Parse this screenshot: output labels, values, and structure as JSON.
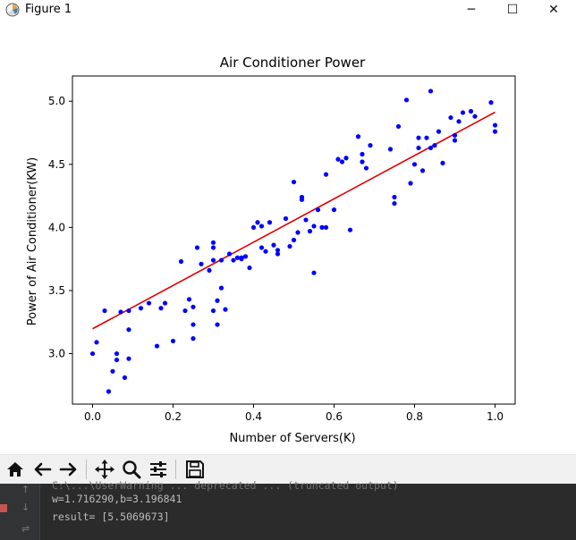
{
  "window": {
    "title": "Figure 1",
    "minimize_glyph": "─",
    "maximize_glyph": "☐",
    "close_glyph": "✕"
  },
  "chart_data": {
    "type": "scatter",
    "title": "Air Conditioner Power",
    "xlabel": "Number of Servers(K)",
    "ylabel": "Power of Air Conditioner(KW)",
    "xlim": [
      -0.05,
      1.05
    ],
    "ylim": [
      2.6,
      5.2
    ],
    "xticks": [
      0.0,
      0.2,
      0.4,
      0.6,
      0.8,
      1.0
    ],
    "xtick_labels": [
      "0.0",
      "0.2",
      "0.4",
      "0.6",
      "0.8",
      "1.0"
    ],
    "yticks": [
      3.0,
      3.5,
      4.0,
      4.5,
      5.0
    ],
    "ytick_labels": [
      "3.0",
      "3.5",
      "4.0",
      "4.5",
      "5.0"
    ],
    "grid": false,
    "series": [
      {
        "kind": "points",
        "color": "#0000ff",
        "x": [
          0.0,
          0.01,
          0.03,
          0.04,
          0.05,
          0.06,
          0.06,
          0.07,
          0.08,
          0.09,
          0.09,
          0.09,
          0.12,
          0.14,
          0.16,
          0.17,
          0.18,
          0.2,
          0.22,
          0.23,
          0.24,
          0.25,
          0.25,
          0.25,
          0.26,
          0.27,
          0.29,
          0.3,
          0.3,
          0.3,
          0.3,
          0.31,
          0.31,
          0.32,
          0.32,
          0.33,
          0.34,
          0.35,
          0.36,
          0.37,
          0.37,
          0.38,
          0.39,
          0.4,
          0.41,
          0.42,
          0.42,
          0.43,
          0.44,
          0.45,
          0.46,
          0.46,
          0.48,
          0.49,
          0.5,
          0.5,
          0.51,
          0.52,
          0.52,
          0.53,
          0.54,
          0.55,
          0.55,
          0.56,
          0.57,
          0.58,
          0.58,
          0.6,
          0.61,
          0.62,
          0.63,
          0.64,
          0.66,
          0.67,
          0.67,
          0.68,
          0.69,
          0.74,
          0.75,
          0.75,
          0.76,
          0.78,
          0.79,
          0.8,
          0.81,
          0.81,
          0.82,
          0.83,
          0.84,
          0.84,
          0.85,
          0.86,
          0.87,
          0.89,
          0.9,
          0.9,
          0.91,
          0.92,
          0.94,
          0.95,
          0.99,
          1.0,
          1.0
        ],
        "y": [
          3.0,
          3.09,
          3.34,
          2.7,
          2.86,
          3.0,
          2.95,
          3.33,
          2.81,
          2.96,
          3.19,
          3.34,
          3.36,
          3.4,
          3.06,
          3.36,
          3.4,
          3.1,
          3.73,
          3.34,
          3.43,
          3.23,
          3.12,
          3.37,
          3.84,
          3.71,
          3.66,
          3.88,
          3.84,
          3.34,
          3.74,
          3.42,
          3.23,
          3.52,
          3.74,
          3.35,
          3.79,
          3.74,
          3.76,
          3.75,
          3.76,
          3.77,
          3.68,
          4.0,
          4.04,
          3.84,
          4.01,
          3.81,
          4.04,
          3.86,
          3.79,
          3.82,
          4.07,
          3.85,
          3.9,
          4.36,
          3.96,
          4.24,
          4.22,
          4.06,
          3.97,
          3.64,
          4.01,
          4.14,
          4.0,
          4.0,
          4.42,
          4.14,
          4.54,
          4.52,
          4.55,
          3.98,
          4.72,
          4.58,
          4.52,
          4.47,
          4.65,
          4.62,
          4.19,
          4.24,
          4.8,
          5.01,
          4.35,
          4.5,
          4.71,
          4.63,
          4.45,
          4.71,
          4.63,
          5.08,
          4.65,
          4.76,
          4.51,
          4.87,
          4.69,
          4.73,
          4.84,
          4.91,
          4.92,
          4.88,
          4.99,
          4.76,
          4.81
        ]
      },
      {
        "kind": "line",
        "color": "#e00000",
        "x": [
          0.0,
          1.0
        ],
        "y": [
          3.196841,
          4.913131
        ]
      }
    ]
  },
  "toolbar": {
    "icons": [
      "home-icon",
      "back-arrow-icon",
      "forward-arrow-icon",
      "pan-icon",
      "zoom-icon",
      "configure-subplots-icon",
      "save-icon"
    ]
  },
  "console": {
    "truncated_line": "C:\\...\\UserWarning ... deprecated ... (truncated output)",
    "params_line": "w=1.716290,b=3.196841",
    "result_line": "result= [5.5069673]"
  }
}
